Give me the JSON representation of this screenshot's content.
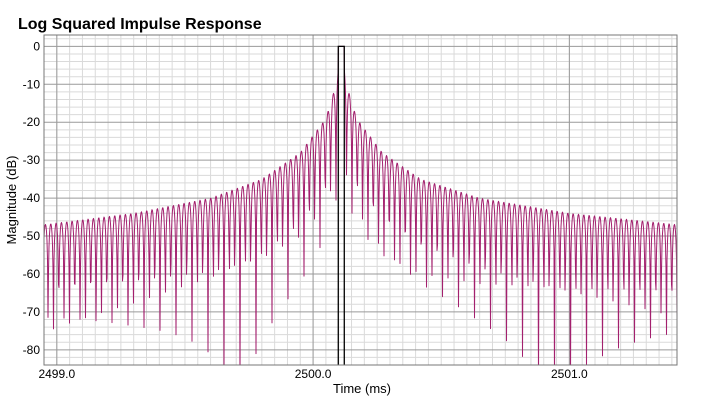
{
  "chart_data": {
    "type": "line",
    "title": "Log Squared Impulse Response",
    "xlabel": "Time (ms)",
    "ylabel": "Magnitude (dB)",
    "xlim": [
      2498.95,
      2501.42
    ],
    "ylim": [
      -84,
      3
    ],
    "x_major_ticks": [
      2499.0,
      2500.0,
      2501.0
    ],
    "x_tick_labels": [
      "2499.0",
      "2500.0",
      "2501.0"
    ],
    "x_minor_step": 0.05,
    "y_ticks": [
      0,
      -10,
      -20,
      -30,
      -40,
      -50,
      -60,
      -70,
      -80
    ],
    "y_tick_labels": [
      "0",
      "-10",
      "-20",
      "-30",
      "-40",
      "-50",
      "-60",
      "-70",
      "-80"
    ],
    "y_minor_step": 2,
    "grid": true,
    "series": [
      {
        "color": "#a3206e",
        "description_values": {
          "peak_time_ms": 2500.11,
          "peak_db": 0,
          "lobe_period_ms": 0.0208,
          "envelope_points": [
            {
              "x": 2498.95,
              "y": -47
            },
            {
              "x": 2499.3,
              "y": -44
            },
            {
              "x": 2499.6,
              "y": -40
            },
            {
              "x": 2499.8,
              "y": -35
            },
            {
              "x": 2499.95,
              "y": -28
            },
            {
              "x": 2500.05,
              "y": -19
            },
            {
              "x": 2500.09,
              "y": -10
            },
            {
              "x": 2500.11,
              "y": 0
            },
            {
              "x": 2500.13,
              "y": -10
            },
            {
              "x": 2500.17,
              "y": -19
            },
            {
              "x": 2500.27,
              "y": -28
            },
            {
              "x": 2500.42,
              "y": -35
            },
            {
              "x": 2500.65,
              "y": -40
            },
            {
              "x": 2501.0,
              "y": -44
            },
            {
              "x": 2501.42,
              "y": -47
            }
          ]
        }
      },
      {
        "color": "#000000",
        "description_values": {
          "center_x": 2500.11,
          "peak_db": 0
        }
      }
    ]
  }
}
